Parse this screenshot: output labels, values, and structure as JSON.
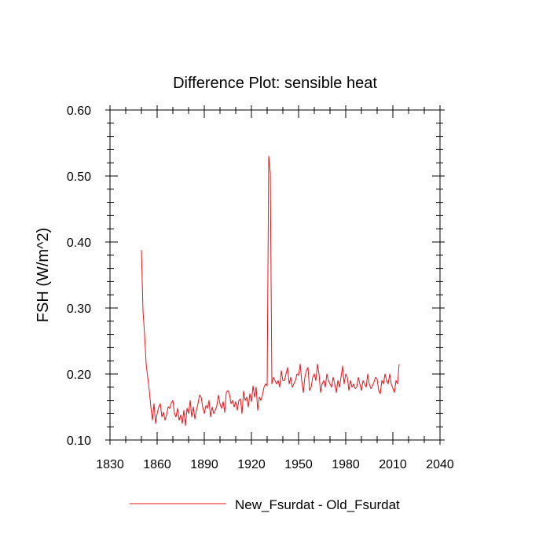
{
  "chart_data": {
    "type": "line",
    "title": "Difference Plot: sensible heat",
    "xlabel": "",
    "ylabel": "FSH  (W/m^2)",
    "xlim": [
      1830,
      2040
    ],
    "ylim": [
      0.1,
      0.6
    ],
    "x_ticks": [
      1830,
      1860,
      1890,
      1920,
      1950,
      1980,
      2010,
      2040
    ],
    "y_ticks": [
      0.1,
      0.2,
      0.3,
      0.4,
      0.5,
      0.6
    ],
    "x_tick_labels": [
      "1830",
      "1860",
      "1890",
      "1920",
      "1950",
      "1980",
      "2010",
      "2040"
    ],
    "y_tick_labels": [
      "0.10",
      "0.20",
      "0.30",
      "0.40",
      "0.50",
      "0.60"
    ],
    "x_minor_step": 10,
    "y_minor_step": 0.02,
    "grid": false,
    "legend_position": "bottom-center",
    "series": [
      {
        "name": "New_Fsurdat - Old_Fsurdat",
        "color": "#e8141c",
        "x_start": 1850,
        "x_step": 1,
        "values": [
          0.388,
          0.295,
          0.26,
          0.215,
          0.195,
          0.175,
          0.15,
          0.13,
          0.155,
          0.125,
          0.14,
          0.15,
          0.155,
          0.135,
          0.142,
          0.13,
          0.138,
          0.15,
          0.148,
          0.156,
          0.16,
          0.14,
          0.135,
          0.148,
          0.13,
          0.138,
          0.125,
          0.145,
          0.122,
          0.148,
          0.14,
          0.16,
          0.135,
          0.15,
          0.132,
          0.145,
          0.155,
          0.168,
          0.165,
          0.15,
          0.14,
          0.152,
          0.148,
          0.16,
          0.135,
          0.15,
          0.14,
          0.145,
          0.152,
          0.168,
          0.155,
          0.148,
          0.158,
          0.142,
          0.172,
          0.175,
          0.17,
          0.155,
          0.16,
          0.15,
          0.158,
          0.145,
          0.16,
          0.162,
          0.14,
          0.174,
          0.16,
          0.165,
          0.15,
          0.17,
          0.158,
          0.182,
          0.165,
          0.18,
          0.145,
          0.165,
          0.16,
          0.168,
          0.18,
          0.185,
          0.182,
          0.53,
          0.505,
          0.185,
          0.195,
          0.19,
          0.185,
          0.19,
          0.18,
          0.205,
          0.19,
          0.19,
          0.2,
          0.21,
          0.185,
          0.195,
          0.18,
          0.185,
          0.19,
          0.2,
          0.198,
          0.215,
          0.19,
          0.172,
          0.195,
          0.205,
          0.21,
          0.175,
          0.18,
          0.195,
          0.2,
          0.19,
          0.215,
          0.2,
          0.172,
          0.185,
          0.19,
          0.18,
          0.2,
          0.19,
          0.185,
          0.18,
          0.195,
          0.185,
          0.172,
          0.19,
          0.18,
          0.195,
          0.212,
          0.185,
          0.2,
          0.195,
          0.175,
          0.19,
          0.18,
          0.185,
          0.178,
          0.18,
          0.195,
          0.185,
          0.175,
          0.19,
          0.185,
          0.18,
          0.2,
          0.185,
          0.178,
          0.182,
          0.188,
          0.195,
          0.192,
          0.175,
          0.17,
          0.19,
          0.185,
          0.2,
          0.19,
          0.185,
          0.2,
          0.185,
          0.178,
          0.172,
          0.19,
          0.185,
          0.215
        ]
      }
    ]
  }
}
